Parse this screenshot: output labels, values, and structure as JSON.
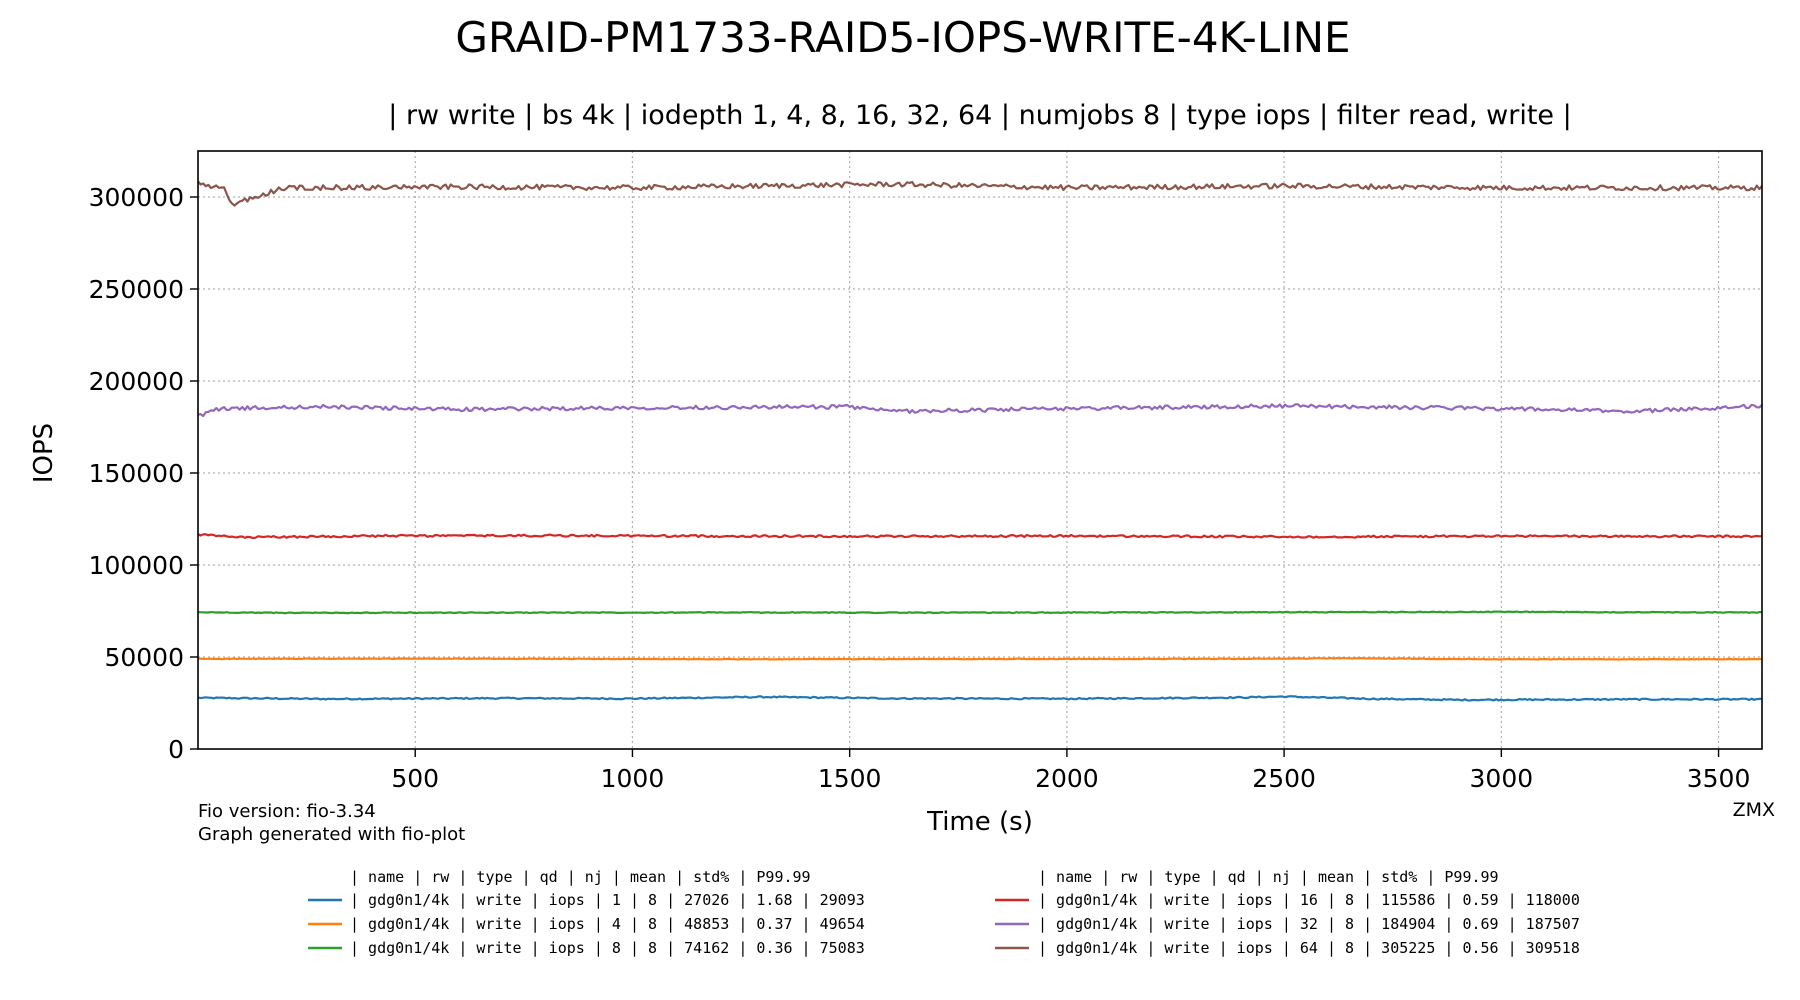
{
  "chart_data": {
    "type": "line",
    "title": "GRAID-PM1733-RAID5-IOPS-WRITE-4K-LINE",
    "subtitle": "| rw write | bs 4k | iodepth 1, 4, 8, 16, 32, 64 | numjobs 8 | type iops | filter read, write |",
    "xlabel": "Time (s)",
    "ylabel": "IOPS",
    "xlim": [
      0,
      3600
    ],
    "ylim": [
      0,
      325000
    ],
    "xticks": [
      500,
      1000,
      1500,
      2000,
      2500,
      3000,
      3500
    ],
    "yticks": [
      0,
      50000,
      100000,
      150000,
      200000,
      250000,
      300000
    ],
    "grid": true,
    "footnote_left": [
      "Fio version: fio-3.34",
      "Graph generated with fio-plot"
    ],
    "footnote_right": "ZMX",
    "legend": {
      "header": "| name       | rw    | type | qd | nj | mean   | std% | P99.99",
      "placement": "below"
    },
    "series": [
      {
        "color": "#1f77b4",
        "row": "|  gdg0n1/4k | write | iops |  1 |  8 |  27026 | 1.68 |  29093",
        "mean": 27026,
        "std_pct": 1.68,
        "p9999": 29093,
        "values": [
          [
            0,
            27800
          ],
          [
            300,
            27200
          ],
          [
            700,
            27600
          ],
          [
            1000,
            27400
          ],
          [
            1300,
            28300
          ],
          [
            1600,
            27500
          ],
          [
            2000,
            27300
          ],
          [
            2400,
            28000
          ],
          [
            2500,
            28500
          ],
          [
            2700,
            27300
          ],
          [
            2900,
            26700
          ],
          [
            3300,
            27000
          ],
          [
            3600,
            27000
          ]
        ]
      },
      {
        "color": "#ff7f0e",
        "row": "|  gdg0n1/4k | write | iops |  4 |  8 |  48853 | 0.37 |  49654",
        "mean": 48853,
        "std_pct": 0.37,
        "p9999": 49654,
        "values": [
          [
            0,
            49000
          ],
          [
            600,
            49100
          ],
          [
            1200,
            48800
          ],
          [
            1800,
            48900
          ],
          [
            2400,
            49000
          ],
          [
            2650,
            49300
          ],
          [
            3000,
            48800
          ],
          [
            3600,
            48800
          ]
        ]
      },
      {
        "color": "#2ca02c",
        "row": "|  gdg0n1/4k | write | iops |  8 |  8 |  74162 | 0.36 |  75083",
        "mean": 74162,
        "std_pct": 0.36,
        "p9999": 75083,
        "values": [
          [
            0,
            74300
          ],
          [
            200,
            74000
          ],
          [
            600,
            74100
          ],
          [
            1200,
            74200
          ],
          [
            1800,
            74100
          ],
          [
            2400,
            74300
          ],
          [
            3000,
            74500
          ],
          [
            3600,
            74200
          ]
        ]
      },
      {
        "color": "#d62728",
        "row": "|  gdg0n1/4k | write | iops | 16 |  8 | 115586 | 0.59 | 118000",
        "mean": 115586,
        "std_pct": 0.59,
        "p9999": 118000,
        "values": [
          [
            0,
            116500
          ],
          [
            100,
            115000
          ],
          [
            400,
            115800
          ],
          [
            800,
            116000
          ],
          [
            1200,
            115700
          ],
          [
            1600,
            115600
          ],
          [
            2000,
            115800
          ],
          [
            2500,
            115300
          ],
          [
            3000,
            115700
          ],
          [
            3600,
            115500
          ]
        ]
      },
      {
        "color": "#9467bd",
        "row": "|  gdg0n1/4k | write | iops | 32 |  8 | 184904 | 0.69 | 187507",
        "mean": 184904,
        "std_pct": 0.69,
        "p9999": 187507,
        "values": [
          [
            0,
            181000
          ],
          [
            50,
            185000
          ],
          [
            300,
            186000
          ],
          [
            600,
            184500
          ],
          [
            1000,
            185500
          ],
          [
            1500,
            186000
          ],
          [
            1600,
            183500
          ],
          [
            2000,
            185000
          ],
          [
            2500,
            186500
          ],
          [
            3000,
            185000
          ],
          [
            3300,
            183500
          ],
          [
            3600,
            186500
          ]
        ]
      },
      {
        "color": "#8c564b",
        "row": "|  gdg0n1/4k | write | iops | 64 |  8 | 305225 | 0.56 | 309518",
        "mean": 305225,
        "std_pct": 0.56,
        "p9999": 309518,
        "values": [
          [
            0,
            307500
          ],
          [
            60,
            304000
          ],
          [
            80,
            296000
          ],
          [
            200,
            305000
          ],
          [
            600,
            305500
          ],
          [
            1000,
            305000
          ],
          [
            1600,
            307000
          ],
          [
            2000,
            305000
          ],
          [
            2500,
            306000
          ],
          [
            3000,
            305000
          ],
          [
            3600,
            305000
          ]
        ]
      }
    ]
  }
}
